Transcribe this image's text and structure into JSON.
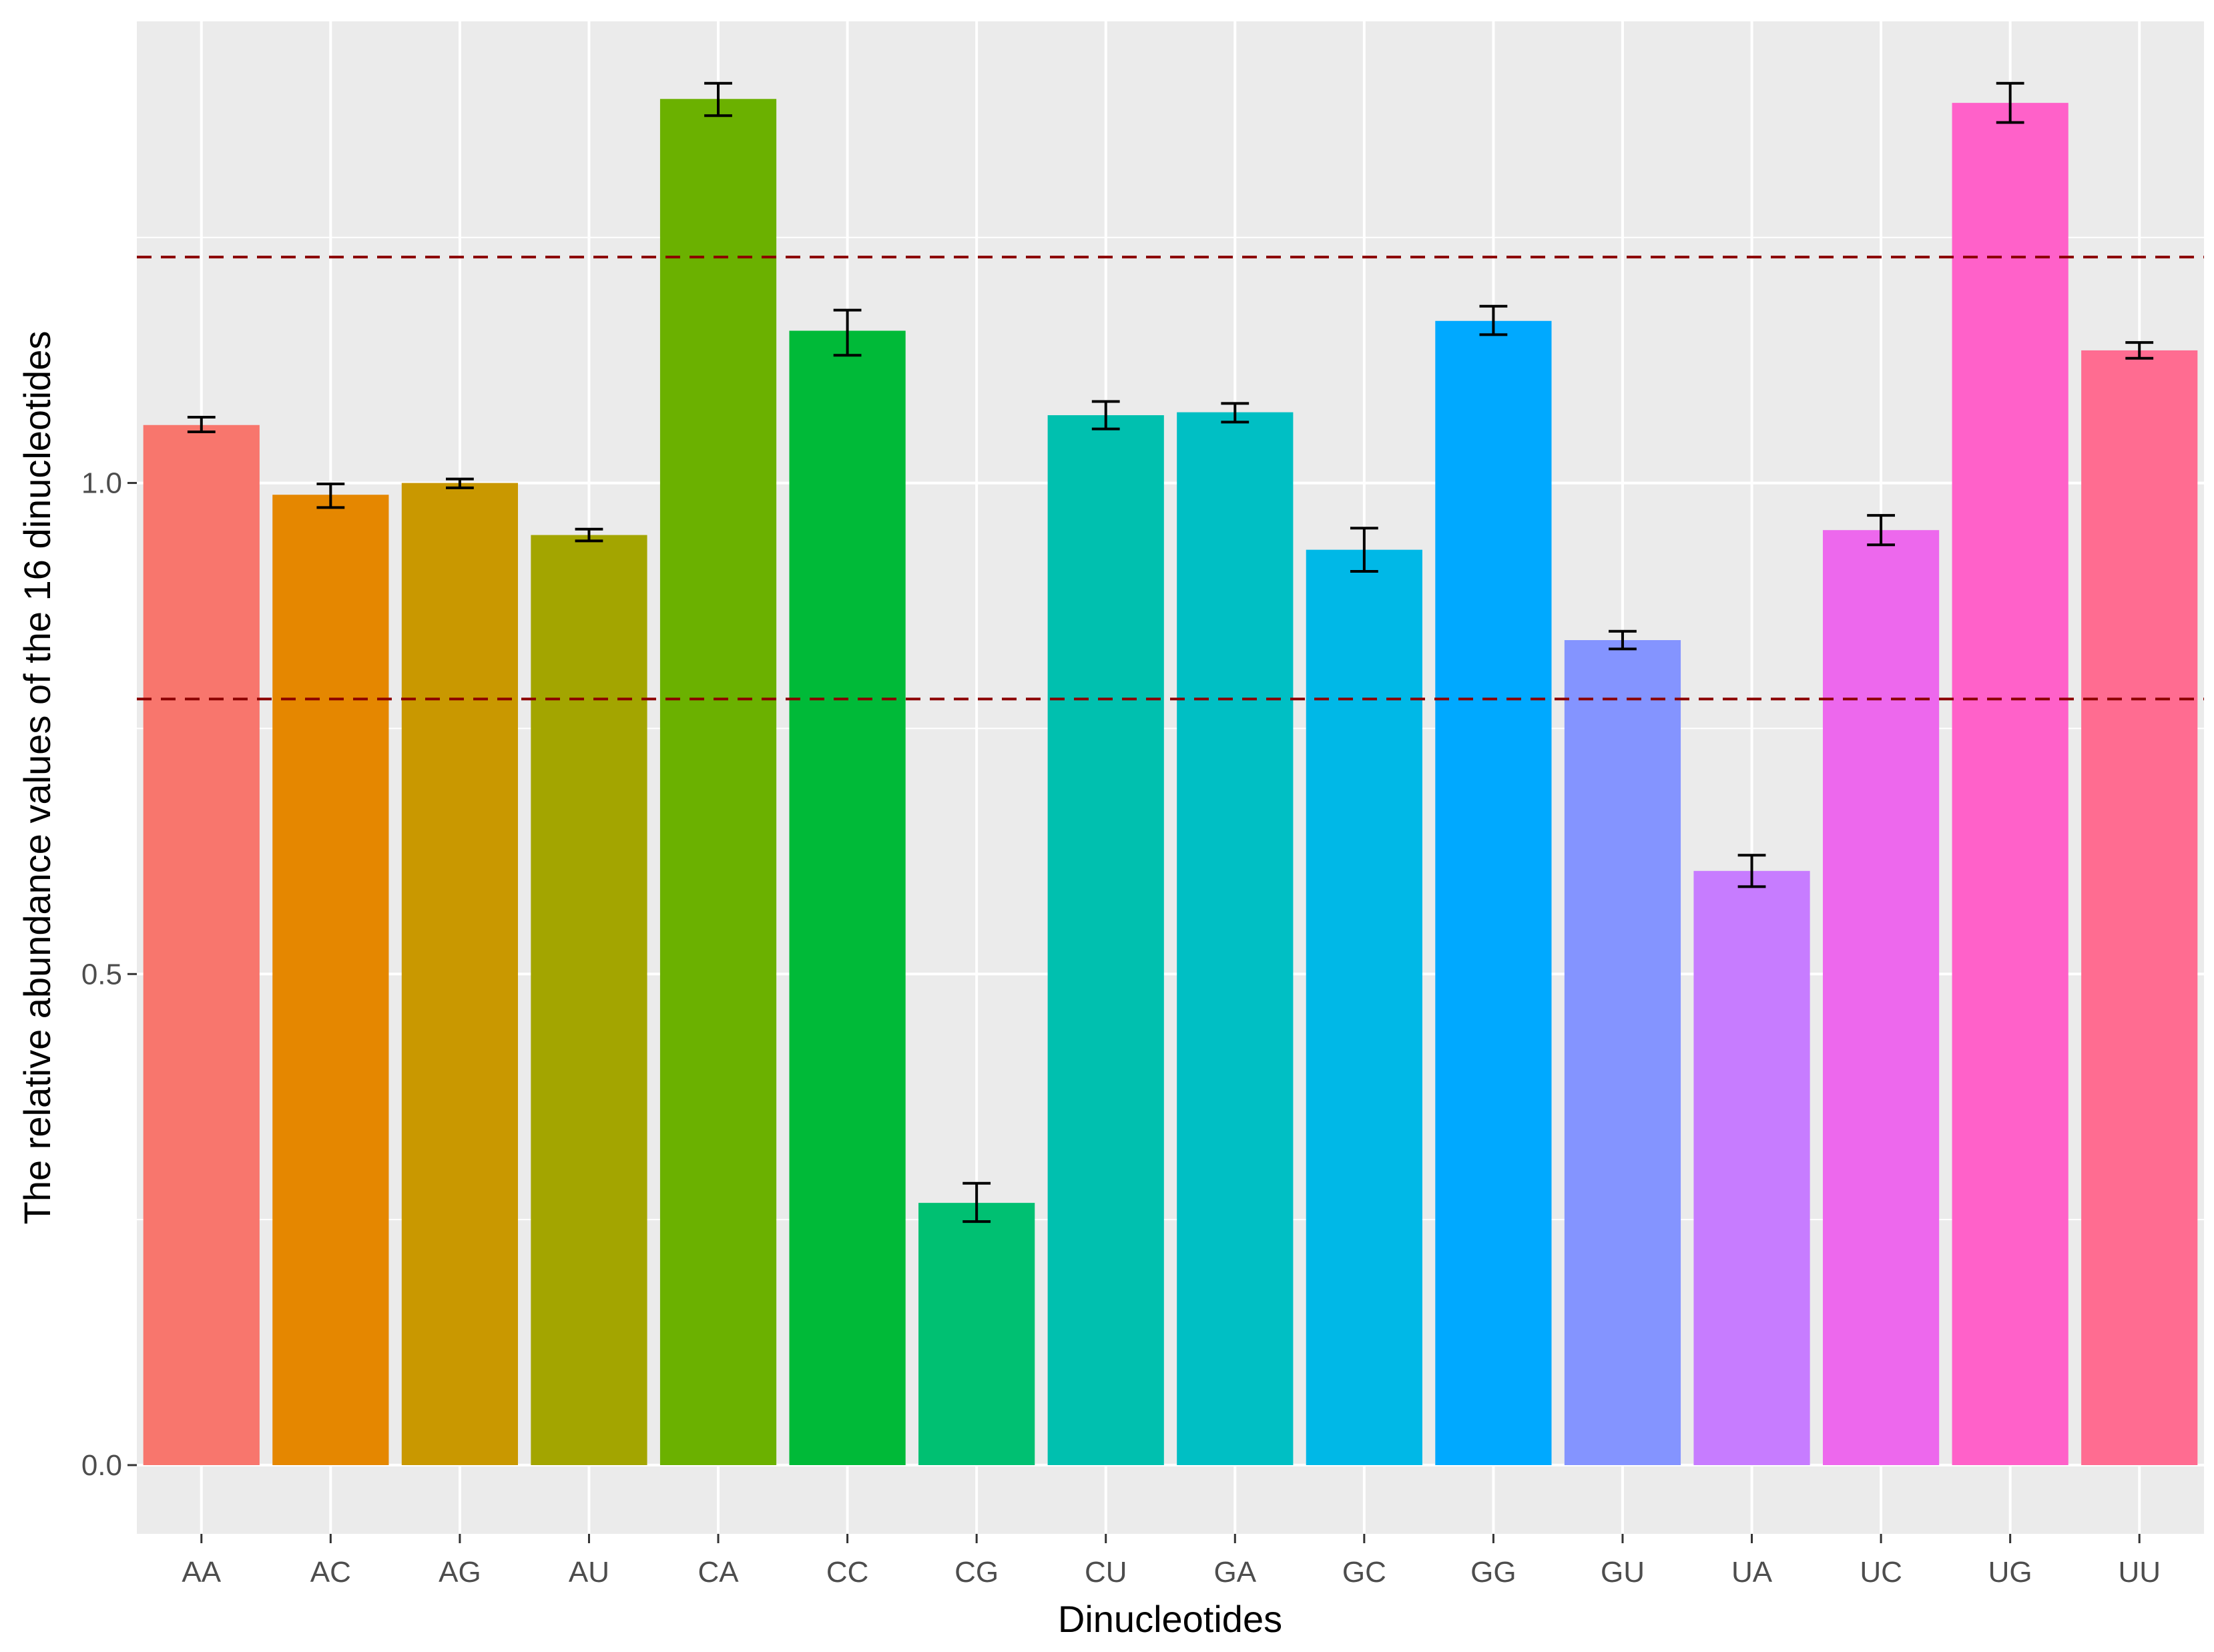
{
  "chart_data": {
    "type": "bar",
    "title": "",
    "xlabel": "Dinucleotides",
    "ylabel": "The relative abundance values of the 16 dinucleotides",
    "categories": [
      "AA",
      "AC",
      "AG",
      "AU",
      "CA",
      "CC",
      "CG",
      "CU",
      "GA",
      "GC",
      "GG",
      "GU",
      "UA",
      "UC",
      "UG",
      "UU"
    ],
    "values": [
      1.059,
      0.988,
      1.0,
      0.947,
      1.391,
      1.155,
      0.267,
      1.069,
      1.072,
      0.932,
      1.165,
      0.84,
      0.605,
      0.952,
      1.387,
      1.135
    ],
    "error_low": [
      1.052,
      0.975,
      0.995,
      0.941,
      1.374,
      1.13,
      0.248,
      1.055,
      1.062,
      0.91,
      1.151,
      0.831,
      0.589,
      0.937,
      1.367,
      1.127
    ],
    "error_high": [
      1.067,
      0.999,
      1.004,
      0.953,
      1.407,
      1.176,
      0.287,
      1.083,
      1.081,
      0.954,
      1.18,
      0.849,
      0.621,
      0.967,
      1.407,
      1.143
    ],
    "colors": [
      "#F8766D",
      "#E58700",
      "#C99800",
      "#A3A500",
      "#6BB100",
      "#00BA38",
      "#00C072",
      "#00C0AF",
      "#00BFC4",
      "#00B8E7",
      "#00A9FF",
      "#8494FF",
      "#C77CFF",
      "#ED68ED",
      "#FF61C9",
      "#FF6C91"
    ],
    "reference_lines": [
      0.78,
      1.23
    ],
    "reference_line_color": "#8B0000",
    "ylim": [
      -0.07,
      1.47
    ],
    "yticks": [
      0.0,
      0.5,
      1.0
    ],
    "ytick_labels": [
      "0.0",
      "0.5",
      "1.0"
    ],
    "grid": true,
    "panel_background": "#EBEBEB",
    "legend": "none"
  }
}
